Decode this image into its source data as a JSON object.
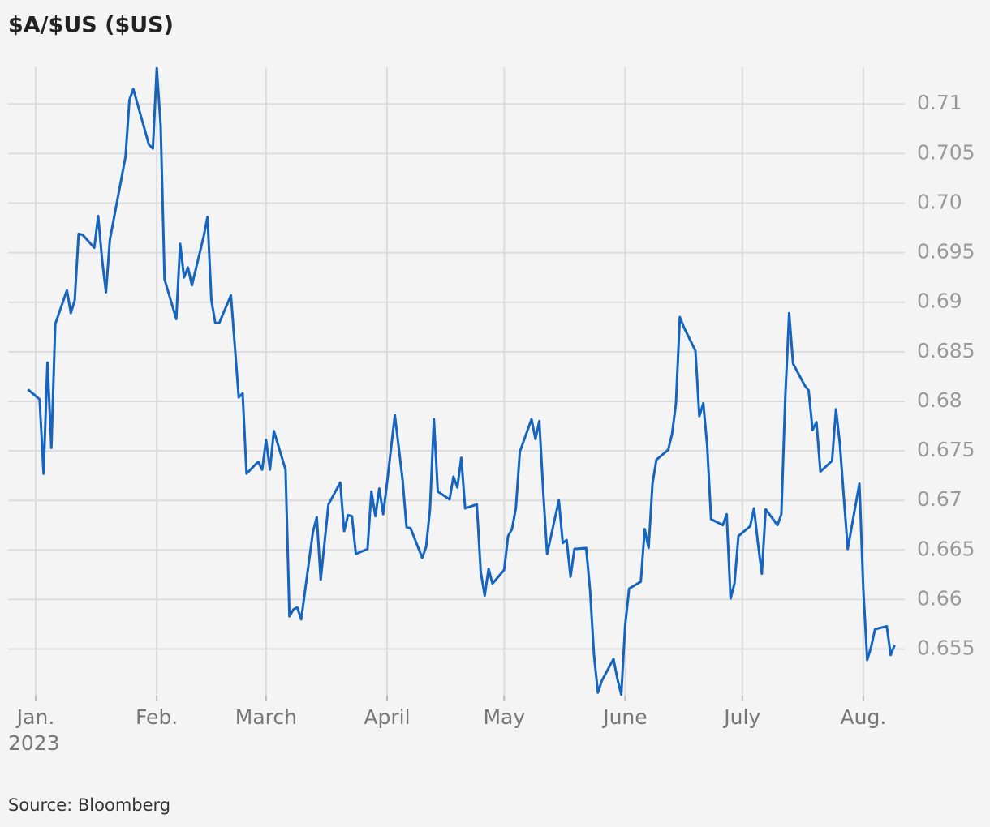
{
  "chart_data": {
    "type": "line",
    "title": "$A/$US ($US)",
    "source": "Source: Bloomberg",
    "year_label": "2023",
    "color": "#1565c0",
    "grid": true,
    "x": [
      -2,
      1,
      2,
      3,
      4,
      5,
      8,
      9,
      10,
      11,
      12,
      15,
      16,
      17,
      18,
      19,
      22,
      23,
      24,
      25,
      29,
      30,
      31,
      32,
      33,
      36,
      37,
      38,
      39,
      40,
      43,
      44,
      45,
      46,
      47,
      50,
      52,
      53,
      54,
      57,
      58,
      59,
      60,
      61,
      64,
      65,
      66,
      67,
      68,
      71,
      72,
      73,
      75,
      78,
      79,
      80,
      81,
      82,
      85,
      86,
      87,
      88,
      89,
      90,
      92,
      94,
      95,
      96,
      99,
      100,
      101,
      102,
      103,
      106,
      107,
      108,
      109,
      110,
      113,
      114,
      115,
      116,
      117,
      120,
      121,
      122,
      123,
      124,
      127,
      128,
      129,
      130,
      131,
      134,
      135,
      136,
      137,
      138,
      141,
      142,
      143,
      144,
      145,
      148,
      149,
      150,
      151,
      152,
      155,
      156,
      157,
      158,
      159,
      162,
      163,
      164,
      165,
      166,
      169,
      170,
      171,
      172,
      173,
      176,
      177,
      178,
      179,
      180,
      183,
      184,
      185,
      186,
      187,
      190,
      191,
      192,
      193,
      194,
      197,
      198,
      199,
      200,
      201,
      204,
      205,
      206,
      207,
      208,
      211,
      212,
      213,
      214,
      215,
      218,
      219,
      220
    ],
    "values": [
      0.6812,
      0.6802,
      0.6727,
      0.6839,
      0.6753,
      0.6878,
      0.6912,
      0.6889,
      0.6902,
      0.6969,
      0.6968,
      0.6955,
      0.6987,
      0.6943,
      0.691,
      0.6963,
      0.7026,
      0.7047,
      0.7104,
      0.7115,
      0.7059,
      0.7055,
      0.7136,
      0.7078,
      0.6923,
      0.6883,
      0.6959,
      0.6925,
      0.6935,
      0.6917,
      0.6966,
      0.6986,
      0.6902,
      0.6879,
      0.6879,
      0.6907,
      0.6804,
      0.6808,
      0.6727,
      0.6739,
      0.6731,
      0.6761,
      0.6731,
      0.677,
      0.6731,
      0.6583,
      0.659,
      0.6592,
      0.658,
      0.6668,
      0.6683,
      0.662,
      0.6696,
      0.6718,
      0.6669,
      0.6685,
      0.6684,
      0.6646,
      0.6651,
      0.6709,
      0.6684,
      0.6712,
      0.6686,
      0.6718,
      0.6786,
      0.672,
      0.6673,
      0.6672,
      0.6642,
      0.6653,
      0.6691,
      0.6782,
      0.6709,
      0.6701,
      0.6724,
      0.6713,
      0.6743,
      0.6692,
      0.6696,
      0.6628,
      0.6604,
      0.6631,
      0.6616,
      0.663,
      0.6664,
      0.6671,
      0.6692,
      0.6749,
      0.6782,
      0.6762,
      0.678,
      0.6709,
      0.6646,
      0.67,
      0.6657,
      0.666,
      0.6623,
      0.6651,
      0.6652,
      0.661,
      0.6544,
      0.6506,
      0.6518,
      0.654,
      0.652,
      0.6504,
      0.6574,
      0.6611,
      0.6618,
      0.6671,
      0.6652,
      0.6717,
      0.6741,
      0.6751,
      0.6767,
      0.6798,
      0.6885,
      0.6875,
      0.6851,
      0.6785,
      0.6798,
      0.6755,
      0.6681,
      0.6675,
      0.6686,
      0.6601,
      0.6616,
      0.6664,
      0.6674,
      0.6692,
      0.6657,
      0.6626,
      0.6691,
      0.6675,
      0.6686,
      0.6804,
      0.6889,
      0.6838,
      0.6816,
      0.6811,
      0.6771,
      0.6779,
      0.6729,
      0.674,
      0.6792,
      0.6757,
      0.6704,
      0.6651,
      0.6717,
      0.661,
      0.6539,
      0.6552,
      0.657,
      0.6573,
      0.6544,
      0.6554
    ],
    "xlim": [
      -3,
      222
    ],
    "xticks": [
      {
        "value": 0,
        "label": "Jan."
      },
      {
        "value": 31,
        "label": "Feb."
      },
      {
        "value": 59,
        "label": "March"
      },
      {
        "value": 90,
        "label": "April"
      },
      {
        "value": 120,
        "label": "May"
      },
      {
        "value": 151,
        "label": "June"
      },
      {
        "value": 181,
        "label": "July"
      },
      {
        "value": 212,
        "label": "Aug."
      }
    ],
    "ylim": [
      0.6503,
      0.7137
    ],
    "yticks": [
      0.655,
      0.66,
      0.665,
      0.67,
      0.675,
      0.68,
      0.685,
      0.69,
      0.695,
      {
        "value": 0.7,
        "label": "0.70"
      },
      0.705,
      0.71
    ]
  }
}
